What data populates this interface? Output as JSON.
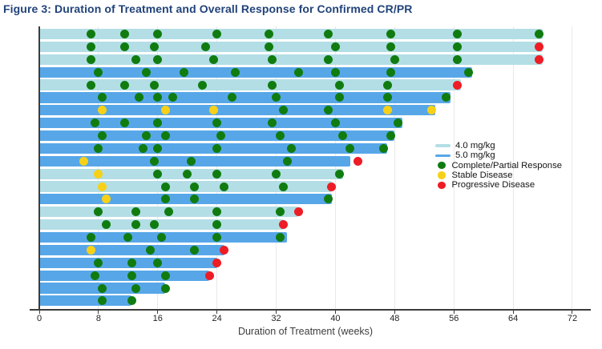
{
  "figure_title": "Figure 3: Duration of Treatment and Overall Response for Confirmed CR/PR",
  "chart_data": {
    "type": "bar",
    "subtype": "swimmer-plot",
    "title": "Figure 3: Duration of Treatment and Overall Response for Confirmed CR/PR",
    "xlabel": "Duration of Treatment (weeks)",
    "x_ticks": [
      0,
      8,
      16,
      24,
      32,
      40,
      48,
      56,
      64,
      72
    ],
    "xlim": [
      0,
      74.5
    ],
    "grid": "vertical gridlines every 8 weeks",
    "legend_position": "middle-right",
    "colors": {
      "dose40": "#b3dee5",
      "dose50": "#57a7e8",
      "cr": "#107c10",
      "sd": "#f7d117",
      "pd": "#ee1c25"
    },
    "legend": [
      {
        "key": "dose40",
        "type": "line",
        "label": "4.0 mg/kg"
      },
      {
        "key": "dose50",
        "type": "line",
        "label": "5.0 mg/kg"
      },
      {
        "key": "cr",
        "type": "dot",
        "label": "Complete/Partial Response"
      },
      {
        "key": "sd",
        "type": "dot",
        "label": "Stable Disease"
      },
      {
        "key": "pd",
        "type": "dot",
        "label": "Progressive Disease"
      }
    ],
    "patients": [
      {
        "id": 1,
        "dose": "4.0",
        "duration_weeks": 68,
        "assessments": [
          {
            "week": 7,
            "response": "cr"
          },
          {
            "week": 11.5,
            "response": "cr"
          },
          {
            "week": 16,
            "response": "cr"
          },
          {
            "week": 24,
            "response": "cr"
          },
          {
            "week": 31,
            "response": "cr"
          },
          {
            "week": 39,
            "response": "cr"
          },
          {
            "week": 47.5,
            "response": "cr"
          },
          {
            "week": 56.5,
            "response": "cr"
          },
          {
            "week": 67.5,
            "response": "cr"
          }
        ]
      },
      {
        "id": 2,
        "dose": "4.0",
        "duration_weeks": 68,
        "assessments": [
          {
            "week": 7,
            "response": "cr"
          },
          {
            "week": 11.5,
            "response": "cr"
          },
          {
            "week": 15.5,
            "response": "cr"
          },
          {
            "week": 22.5,
            "response": "cr"
          },
          {
            "week": 31,
            "response": "cr"
          },
          {
            "week": 40,
            "response": "cr"
          },
          {
            "week": 47.5,
            "response": "cr"
          },
          {
            "week": 56.5,
            "response": "cr"
          },
          {
            "week": 67.5,
            "response": "pd"
          }
        ]
      },
      {
        "id": 3,
        "dose": "4.0",
        "duration_weeks": 68,
        "assessments": [
          {
            "week": 7,
            "response": "cr"
          },
          {
            "week": 13,
            "response": "cr"
          },
          {
            "week": 16,
            "response": "cr"
          },
          {
            "week": 23.5,
            "response": "cr"
          },
          {
            "week": 31.5,
            "response": "cr"
          },
          {
            "week": 39,
            "response": "cr"
          },
          {
            "week": 48,
            "response": "cr"
          },
          {
            "week": 56.5,
            "response": "cr"
          },
          {
            "week": 67.5,
            "response": "pd"
          }
        ]
      },
      {
        "id": 4,
        "dose": "5.0",
        "duration_weeks": 58.5,
        "assessments": [
          {
            "week": 8,
            "response": "cr"
          },
          {
            "week": 14.5,
            "response": "cr"
          },
          {
            "week": 19.5,
            "response": "cr"
          },
          {
            "week": 26.5,
            "response": "cr"
          },
          {
            "week": 35,
            "response": "cr"
          },
          {
            "week": 40,
            "response": "cr"
          },
          {
            "week": 47.5,
            "response": "cr"
          },
          {
            "week": 58,
            "response": "cr"
          }
        ]
      },
      {
        "id": 5,
        "dose": "4.0",
        "duration_weeks": 57,
        "assessments": [
          {
            "week": 7,
            "response": "cr"
          },
          {
            "week": 11.5,
            "response": "cr"
          },
          {
            "week": 15.5,
            "response": "cr"
          },
          {
            "week": 22,
            "response": "cr"
          },
          {
            "week": 31.5,
            "response": "cr"
          },
          {
            "week": 40.5,
            "response": "cr"
          },
          {
            "week": 47,
            "response": "cr"
          },
          {
            "week": 56.5,
            "response": "pd"
          }
        ]
      },
      {
        "id": 6,
        "dose": "5.0",
        "duration_weeks": 55.5,
        "assessments": [
          {
            "week": 8.5,
            "response": "cr"
          },
          {
            "week": 13.5,
            "response": "cr"
          },
          {
            "week": 16,
            "response": "cr"
          },
          {
            "week": 18,
            "response": "cr"
          },
          {
            "week": 26,
            "response": "cr"
          },
          {
            "week": 32,
            "response": "cr"
          },
          {
            "week": 40.5,
            "response": "cr"
          },
          {
            "week": 47,
            "response": "cr"
          },
          {
            "week": 55,
            "response": "cr"
          }
        ]
      },
      {
        "id": 7,
        "dose": "5.0",
        "duration_weeks": 53.5,
        "assessments": [
          {
            "week": 8.5,
            "response": "sd"
          },
          {
            "week": 17,
            "response": "sd"
          },
          {
            "week": 23.5,
            "response": "sd"
          },
          {
            "week": 33,
            "response": "cr"
          },
          {
            "week": 39,
            "response": "cr"
          },
          {
            "week": 47,
            "response": "sd"
          },
          {
            "week": 53,
            "response": "sd"
          }
        ]
      },
      {
        "id": 8,
        "dose": "5.0",
        "duration_weeks": 49,
        "assessments": [
          {
            "week": 7.5,
            "response": "cr"
          },
          {
            "week": 11.5,
            "response": "cr"
          },
          {
            "week": 16,
            "response": "cr"
          },
          {
            "week": 24,
            "response": "cr"
          },
          {
            "week": 31.5,
            "response": "cr"
          },
          {
            "week": 40,
            "response": "cr"
          },
          {
            "week": 48.5,
            "response": "cr"
          }
        ]
      },
      {
        "id": 9,
        "dose": "5.0",
        "duration_weeks": 48,
        "assessments": [
          {
            "week": 8.5,
            "response": "cr"
          },
          {
            "week": 14.5,
            "response": "cr"
          },
          {
            "week": 17,
            "response": "cr"
          },
          {
            "week": 24.5,
            "response": "cr"
          },
          {
            "week": 32.5,
            "response": "cr"
          },
          {
            "week": 41,
            "response": "cr"
          },
          {
            "week": 47.5,
            "response": "cr"
          }
        ]
      },
      {
        "id": 10,
        "dose": "5.0",
        "duration_weeks": 47,
        "assessments": [
          {
            "week": 8,
            "response": "cr"
          },
          {
            "week": 14,
            "response": "cr"
          },
          {
            "week": 16,
            "response": "cr"
          },
          {
            "week": 24,
            "response": "cr"
          },
          {
            "week": 34,
            "response": "cr"
          },
          {
            "week": 42,
            "response": "cr"
          },
          {
            "week": 46.5,
            "response": "cr"
          }
        ]
      },
      {
        "id": 11,
        "dose": "5.0",
        "duration_weeks": 42,
        "assessments": [
          {
            "week": 6,
            "response": "sd"
          },
          {
            "week": 15.5,
            "response": "cr"
          },
          {
            "week": 20.5,
            "response": "cr"
          },
          {
            "week": 33.5,
            "response": "cr"
          },
          {
            "week": 43,
            "response": "pd"
          }
        ]
      },
      {
        "id": 12,
        "dose": "4.0",
        "duration_weeks": 41,
        "assessments": [
          {
            "week": 8,
            "response": "sd"
          },
          {
            "week": 16,
            "response": "cr"
          },
          {
            "week": 20,
            "response": "cr"
          },
          {
            "week": 24,
            "response": "cr"
          },
          {
            "week": 32,
            "response": "cr"
          },
          {
            "week": 40.5,
            "response": "cr"
          }
        ]
      },
      {
        "id": 13,
        "dose": "4.0",
        "duration_weeks": 39.5,
        "assessments": [
          {
            "week": 8.5,
            "response": "sd"
          },
          {
            "week": 17,
            "response": "cr"
          },
          {
            "week": 21,
            "response": "cr"
          },
          {
            "week": 25,
            "response": "cr"
          },
          {
            "week": 33,
            "response": "cr"
          },
          {
            "week": 39.5,
            "response": "pd"
          }
        ]
      },
      {
        "id": 14,
        "dose": "5.0",
        "duration_weeks": 39.5,
        "assessments": [
          {
            "week": 9,
            "response": "sd"
          },
          {
            "week": 17,
            "response": "cr"
          },
          {
            "week": 21,
            "response": "cr"
          },
          {
            "week": 39,
            "response": "cr"
          }
        ]
      },
      {
        "id": 15,
        "dose": "4.0",
        "duration_weeks": 35,
        "assessments": [
          {
            "week": 8,
            "response": "cr"
          },
          {
            "week": 13,
            "response": "cr"
          },
          {
            "week": 17.5,
            "response": "cr"
          },
          {
            "week": 24,
            "response": "cr"
          },
          {
            "week": 32.5,
            "response": "cr"
          },
          {
            "week": 35,
            "response": "pd"
          }
        ]
      },
      {
        "id": 16,
        "dose": "4.0",
        "duration_weeks": 33,
        "assessments": [
          {
            "week": 9,
            "response": "cr"
          },
          {
            "week": 13,
            "response": "cr"
          },
          {
            "week": 15.5,
            "response": "cr"
          },
          {
            "week": 24,
            "response": "cr"
          },
          {
            "week": 33,
            "response": "pd"
          }
        ]
      },
      {
        "id": 17,
        "dose": "5.0",
        "duration_weeks": 33.5,
        "assessments": [
          {
            "week": 7,
            "response": "cr"
          },
          {
            "week": 12,
            "response": "cr"
          },
          {
            "week": 16.5,
            "response": "cr"
          },
          {
            "week": 24,
            "response": "cr"
          },
          {
            "week": 32.5,
            "response": "cr"
          }
        ]
      },
      {
        "id": 18,
        "dose": "5.0",
        "duration_weeks": 25,
        "assessments": [
          {
            "week": 7,
            "response": "sd"
          },
          {
            "week": 15,
            "response": "cr"
          },
          {
            "week": 21,
            "response": "cr"
          },
          {
            "week": 25,
            "response": "pd"
          }
        ]
      },
      {
        "id": 19,
        "dose": "5.0",
        "duration_weeks": 24,
        "assessments": [
          {
            "week": 8,
            "response": "cr"
          },
          {
            "week": 12.5,
            "response": "cr"
          },
          {
            "week": 16,
            "response": "cr"
          },
          {
            "week": 24,
            "response": "pd"
          }
        ]
      },
      {
        "id": 20,
        "dose": "5.0",
        "duration_weeks": 23,
        "assessments": [
          {
            "week": 7.5,
            "response": "cr"
          },
          {
            "week": 12.5,
            "response": "cr"
          },
          {
            "week": 17,
            "response": "cr"
          },
          {
            "week": 23,
            "response": "pd"
          }
        ]
      },
      {
        "id": 21,
        "dose": "5.0",
        "duration_weeks": 17,
        "assessments": [
          {
            "week": 8.5,
            "response": "cr"
          },
          {
            "week": 13,
            "response": "cr"
          },
          {
            "week": 17,
            "response": "cr"
          }
        ]
      },
      {
        "id": 22,
        "dose": "5.0",
        "duration_weeks": 12.5,
        "assessments": [
          {
            "week": 8.5,
            "response": "cr"
          },
          {
            "week": 12.5,
            "response": "cr"
          }
        ]
      }
    ]
  }
}
